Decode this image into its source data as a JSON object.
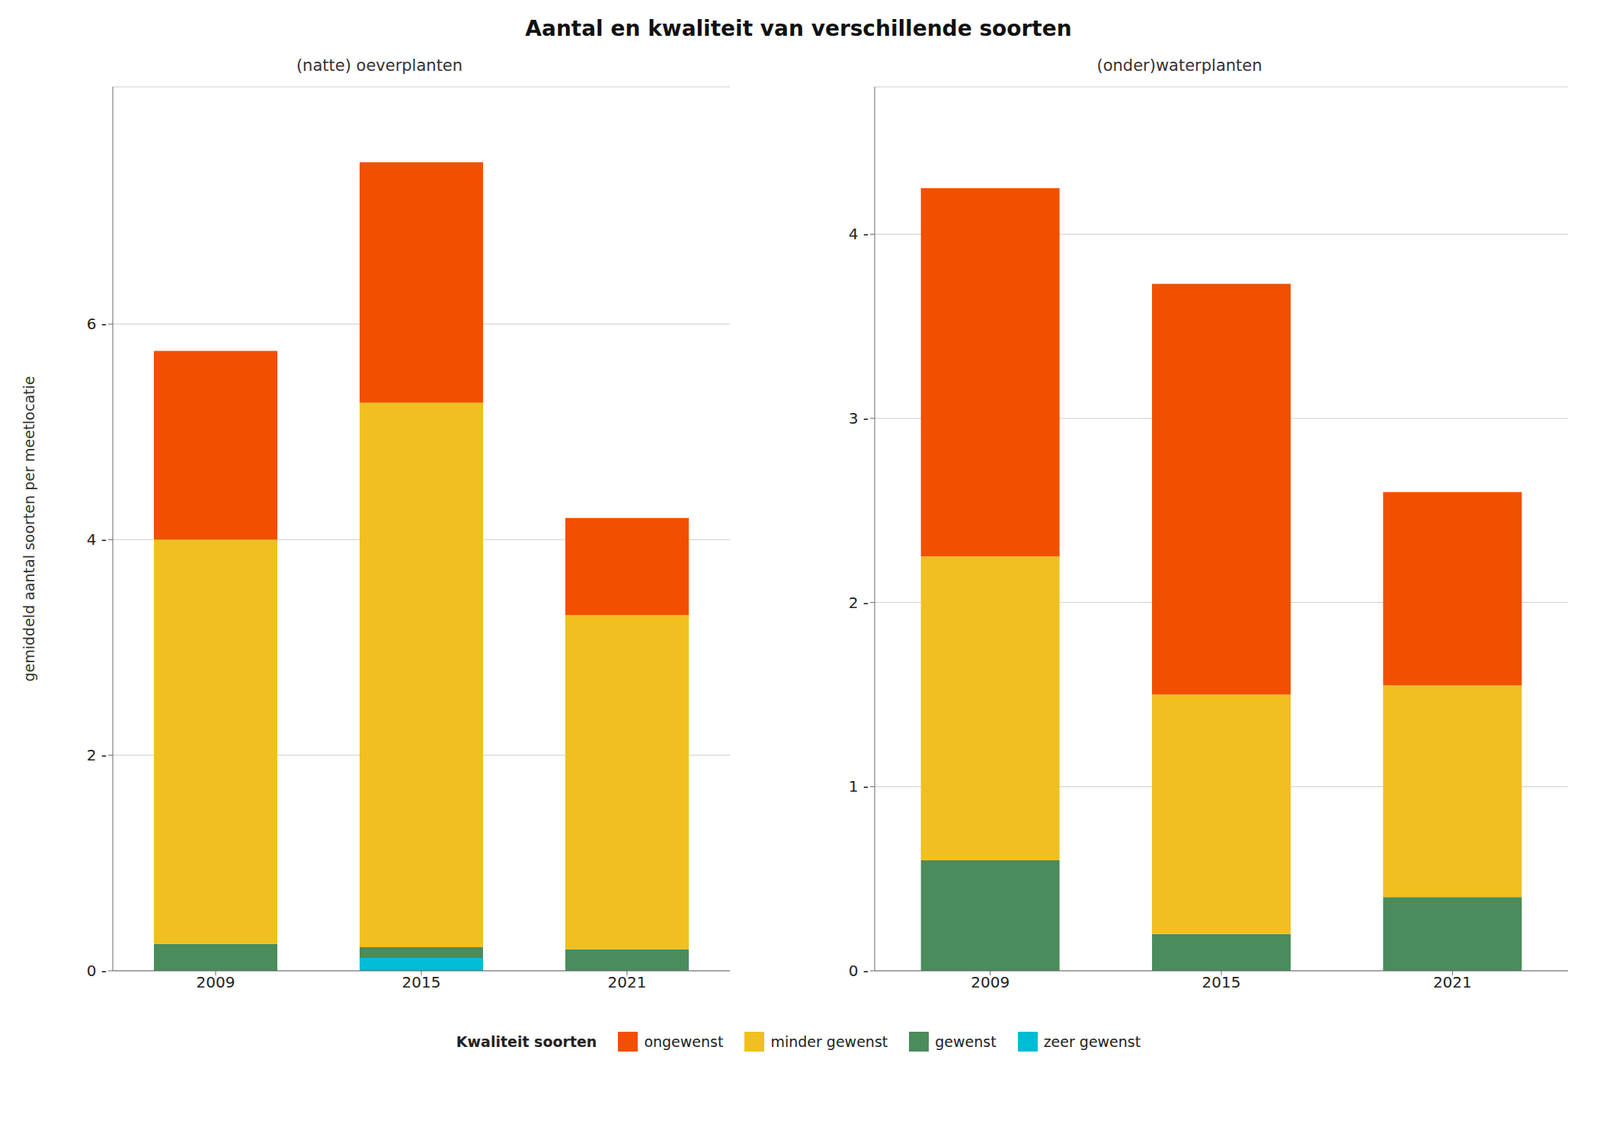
{
  "title": "Aantal en kwaliteit van verschillende soorten",
  "legend_title": "Kwaliteit soorten",
  "chart_data": [
    {
      "type": "bar",
      "stacked": true,
      "grid": true,
      "subtitle": "(natte) oeverplanten",
      "ylabel": "gemiddeld aantal soorten per meetlocatie",
      "categories": [
        "2009",
        "2015",
        "2021"
      ],
      "series": [
        {
          "name": "zeer gewenst",
          "color": "#00BCD4",
          "values": [
            0.0,
            0.12,
            0.0
          ]
        },
        {
          "name": "gewenst",
          "color": "#4A8C5C",
          "values": [
            0.25,
            0.1,
            0.2
          ]
        },
        {
          "name": "minder gewenst",
          "color": "#F0C020",
          "values": [
            3.75,
            5.05,
            3.1
          ]
        },
        {
          "name": "ongewenst",
          "color": "#F05000",
          "values": [
            1.75,
            2.23,
            0.9
          ]
        }
      ],
      "ylim": [
        0,
        8.2
      ],
      "yticks": [
        {
          "value": 0,
          "label": "0 -"
        },
        {
          "value": 2,
          "label": "2 -"
        },
        {
          "value": 4,
          "label": "4 -"
        },
        {
          "value": 6,
          "label": "6 -"
        }
      ]
    },
    {
      "type": "bar",
      "stacked": true,
      "grid": true,
      "subtitle": "(onder)waterplanten",
      "categories": [
        "2009",
        "2015",
        "2021"
      ],
      "series": [
        {
          "name": "zeer gewenst",
          "color": "#00BCD4",
          "values": [
            0.0,
            0.0,
            0.0
          ]
        },
        {
          "name": "gewenst",
          "color": "#4A8C5C",
          "values": [
            0.6,
            0.2,
            0.4
          ]
        },
        {
          "name": "minder gewenst",
          "color": "#F0C020",
          "values": [
            1.65,
            1.3,
            1.15
          ]
        },
        {
          "name": "ongewenst",
          "color": "#F05000",
          "values": [
            2.0,
            2.23,
            1.05
          ]
        }
      ],
      "ylim": [
        0,
        4.8
      ],
      "yticks": [
        {
          "value": 0,
          "label": "0 -"
        },
        {
          "value": 1,
          "label": "1 -"
        },
        {
          "value": 2,
          "label": "2 -"
        },
        {
          "value": 3,
          "label": "3 -"
        },
        {
          "value": 4,
          "label": "4 -"
        }
      ]
    }
  ]
}
